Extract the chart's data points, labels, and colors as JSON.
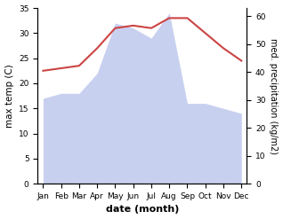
{
  "months": [
    "Jan",
    "Feb",
    "Mar",
    "Apr",
    "May",
    "Jun",
    "Jul",
    "Aug",
    "Sep",
    "Oct",
    "Nov",
    "Dec"
  ],
  "temperature": [
    22.5,
    23.0,
    23.5,
    27.0,
    31.0,
    31.5,
    31.0,
    33.0,
    33.0,
    30.0,
    27.0,
    24.5
  ],
  "precipitation": [
    17,
    18,
    18,
    22,
    32,
    31,
    29,
    34,
    16,
    16,
    15,
    14
  ],
  "temp_ylim": [
    0,
    35
  ],
  "precip_ylim": [
    0,
    63
  ],
  "temp_yticks": [
    0,
    5,
    10,
    15,
    20,
    25,
    30,
    35
  ],
  "precip_yticks": [
    0,
    10,
    20,
    30,
    40,
    50,
    60
  ],
  "xlabel": "date (month)",
  "ylabel_left": "max temp (C)",
  "ylabel_right": "med. precipitation (kg/m2)",
  "line_color": "#cc4444",
  "fill_color": "#c8d0f0",
  "fill_alpha": 1.0,
  "background_color": "#ffffff",
  "label_fontsize": 7.5,
  "tick_fontsize": 6.5
}
